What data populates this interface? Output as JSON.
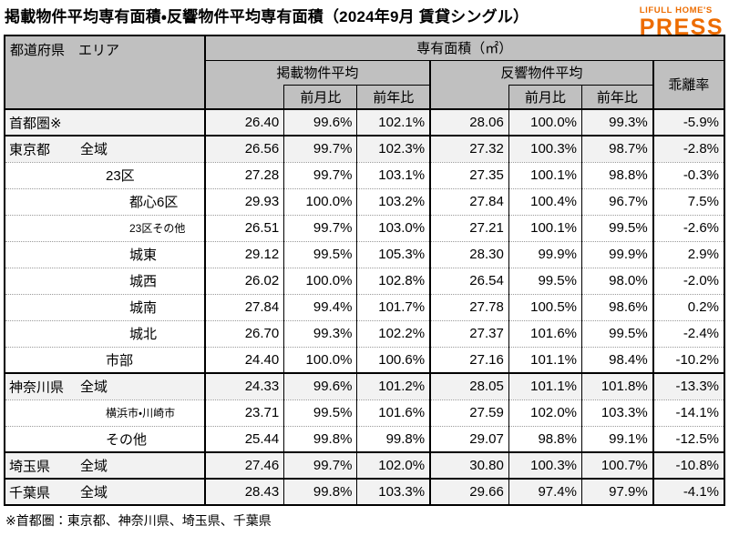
{
  "title": "掲載物件平均専有面積・反響物件平均専有面積（2024年9月 賃貸シングル）",
  "logo": {
    "line1": "LIFULL HOME'S",
    "line2": "PRESS"
  },
  "colors": {
    "accent_orange": "#ed6c00",
    "header_bg": "#c0c0c0",
    "shaded_row_bg": "#f2f2f2",
    "border": "#000000"
  },
  "footnote": "※首都圏：東京都、神奈川県、埼玉県、千葉県",
  "chart_data": {
    "type": "table",
    "title": "掲載物件平均専有面積・反響物件平均専有面積（2024年9月 賃貸シングル）",
    "header": {
      "corner": "都道府県　エリア",
      "unit": "専有面積（㎡）",
      "listed": "掲載物件平均",
      "response": "反響物件平均",
      "mom": "前月比",
      "yoy": "前年比",
      "divergence": "乖離率"
    },
    "columns": [
      "都道府県・エリア",
      "掲載物件平均 専有面積(㎡)",
      "掲載 前月比",
      "掲載 前年比",
      "反響物件平均 専有面積(㎡)",
      "反響 前月比",
      "反響 前年比",
      "乖離率"
    ],
    "rows": [
      {
        "pref": "首都圏※",
        "area": "",
        "values": [
          "26.40",
          "99.6%",
          "102.1%",
          "28.06",
          "100.0%",
          "99.3%",
          "-5.9%"
        ]
      },
      {
        "pref": "東京都",
        "area": "全域",
        "values": [
          "26.56",
          "99.7%",
          "102.3%",
          "27.32",
          "100.3%",
          "98.7%",
          "-2.8%"
        ]
      },
      {
        "pref": "",
        "area": "23区",
        "values": [
          "27.28",
          "99.7%",
          "103.1%",
          "27.35",
          "100.1%",
          "98.8%",
          "-0.3%"
        ]
      },
      {
        "pref": "",
        "area": "都心6区",
        "values": [
          "29.93",
          "100.0%",
          "103.2%",
          "27.84",
          "100.4%",
          "96.7%",
          "7.5%"
        ]
      },
      {
        "pref": "",
        "area": "23区その他",
        "values": [
          "26.51",
          "99.7%",
          "103.0%",
          "27.21",
          "100.1%",
          "99.5%",
          "-2.6%"
        ]
      },
      {
        "pref": "",
        "area": "城東",
        "values": [
          "29.12",
          "99.5%",
          "105.3%",
          "28.30",
          "99.9%",
          "99.9%",
          "2.9%"
        ]
      },
      {
        "pref": "",
        "area": "城西",
        "values": [
          "26.02",
          "100.0%",
          "102.8%",
          "26.54",
          "99.5%",
          "98.0%",
          "-2.0%"
        ]
      },
      {
        "pref": "",
        "area": "城南",
        "values": [
          "27.84",
          "99.4%",
          "101.7%",
          "27.78",
          "100.5%",
          "98.6%",
          "0.2%"
        ]
      },
      {
        "pref": "",
        "area": "城北",
        "values": [
          "26.70",
          "99.3%",
          "102.2%",
          "27.37",
          "101.6%",
          "99.5%",
          "-2.4%"
        ]
      },
      {
        "pref": "",
        "area": "市部",
        "values": [
          "24.40",
          "100.0%",
          "100.6%",
          "27.16",
          "101.1%",
          "98.4%",
          "-10.2%"
        ]
      },
      {
        "pref": "神奈川県",
        "area": "全域",
        "values": [
          "24.33",
          "99.6%",
          "101.2%",
          "28.05",
          "101.1%",
          "101.8%",
          "-13.3%"
        ]
      },
      {
        "pref": "",
        "area": "横浜市・川崎市",
        "values": [
          "23.71",
          "99.5%",
          "101.6%",
          "27.59",
          "102.0%",
          "103.3%",
          "-14.1%"
        ]
      },
      {
        "pref": "",
        "area": "その他",
        "values": [
          "25.44",
          "99.8%",
          "99.8%",
          "29.07",
          "98.8%",
          "99.1%",
          "-12.5%"
        ]
      },
      {
        "pref": "埼玉県",
        "area": "全域",
        "values": [
          "27.46",
          "99.7%",
          "102.0%",
          "30.80",
          "100.3%",
          "100.7%",
          "-10.8%"
        ]
      },
      {
        "pref": "千葉県",
        "area": "全域",
        "values": [
          "28.43",
          "99.8%",
          "103.3%",
          "29.66",
          "97.4%",
          "97.9%",
          "-4.1%"
        ]
      }
    ]
  }
}
